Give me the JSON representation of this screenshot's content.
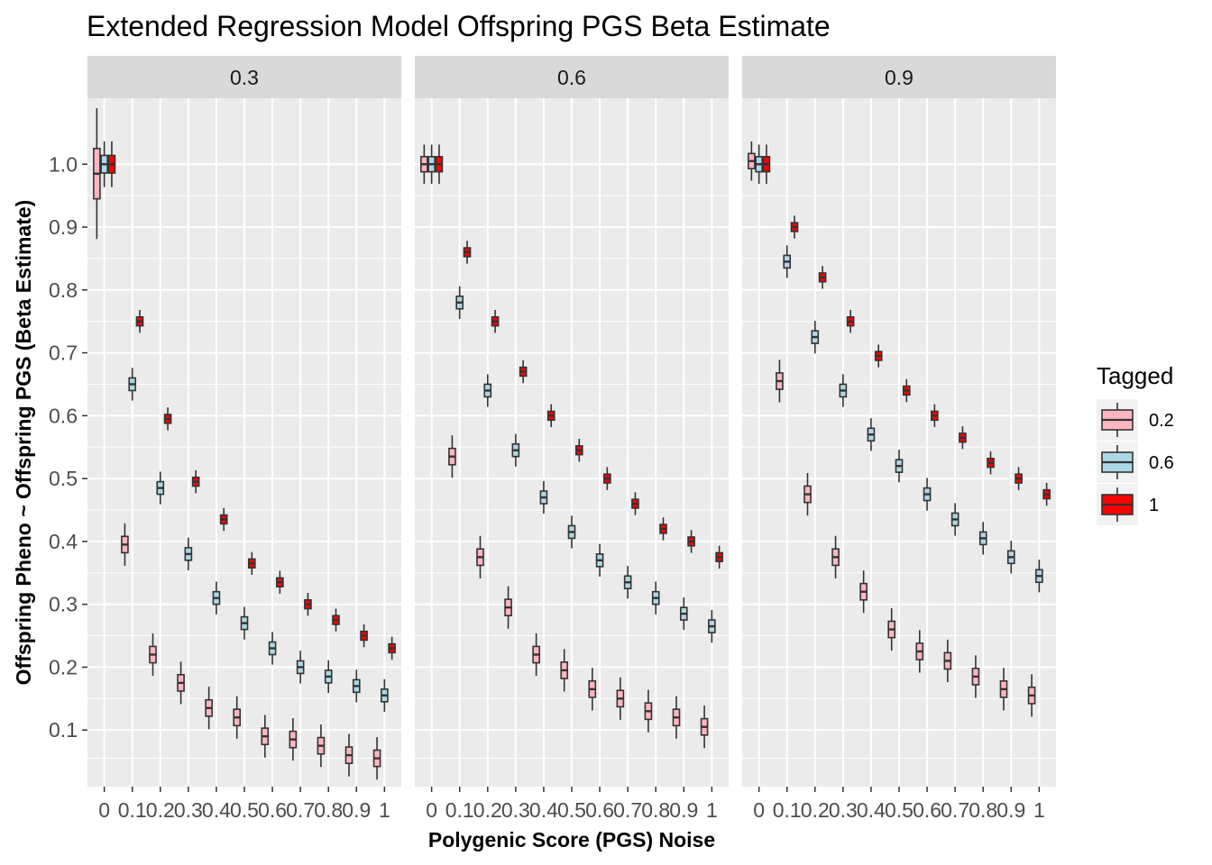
{
  "chart_data": {
    "type": "boxplot",
    "title": "Extended Regression Model Offspring PGS Beta Estimate",
    "xlabel": "Polygenic Score (PGS) Noise",
    "ylabel": "Offspring Pheno ~ Offspring PGS (Beta Estimate)",
    "x_categories": [
      "0",
      "0.1",
      "0.2",
      "0.3",
      "0.4",
      "0.5",
      "0.6",
      "0.7",
      "0.8",
      "0.9",
      "1"
    ],
    "y_ticks": [
      0.1,
      0.2,
      0.3,
      0.4,
      0.5,
      0.6,
      0.7,
      0.8,
      0.9,
      1.0
    ],
    "y_tick_labels": [
      "0.1",
      "0.2",
      "0.3",
      "0.4",
      "0.5",
      "0.6",
      "0.7",
      "0.8",
      "0.9",
      "1.0"
    ],
    "ylim": [
      0.01,
      1.105
    ],
    "grid": true,
    "legend": {
      "title": "Tagged",
      "position": "right",
      "entries": [
        {
          "label": "0.2",
          "color": "#FFB6C1"
        },
        {
          "label": "0.6",
          "color": "#ADD8E6"
        },
        {
          "label": "1",
          "color": "#FF0000"
        }
      ]
    },
    "facets": [
      {
        "label": "0.3",
        "series": [
          {
            "tagged": "0.2",
            "medians": [
              0.985,
              0.395,
              0.22,
              0.175,
              0.135,
              0.12,
              0.09,
              0.085,
              0.075,
              0.06,
              0.055
            ]
          },
          {
            "tagged": "0.6",
            "medians": [
              1.0,
              0.65,
              0.485,
              0.38,
              0.31,
              0.27,
              0.23,
              0.2,
              0.185,
              0.17,
              0.155
            ]
          },
          {
            "tagged": "1",
            "medians": [
              1.0,
              0.75,
              0.595,
              0.495,
              0.435,
              0.365,
              0.335,
              0.3,
              0.275,
              0.25,
              0.23
            ]
          }
        ]
      },
      {
        "label": "0.6",
        "series": [
          {
            "tagged": "0.2",
            "medians": [
              1.0,
              0.535,
              0.375,
              0.295,
              0.22,
              0.195,
              0.165,
              0.15,
              0.13,
              0.12,
              0.105
            ]
          },
          {
            "tagged": "0.6",
            "medians": [
              1.0,
              0.78,
              0.64,
              0.545,
              0.47,
              0.415,
              0.37,
              0.335,
              0.31,
              0.285,
              0.265
            ]
          },
          {
            "tagged": "1",
            "medians": [
              1.0,
              0.86,
              0.75,
              0.67,
              0.6,
              0.545,
              0.5,
              0.46,
              0.42,
              0.4,
              0.375
            ]
          }
        ]
      },
      {
        "label": "0.9",
        "series": [
          {
            "tagged": "0.2",
            "medians": [
              1.005,
              0.655,
              0.475,
              0.375,
              0.32,
              0.26,
              0.225,
              0.21,
              0.185,
              0.165,
              0.155
            ]
          },
          {
            "tagged": "0.6",
            "medians": [
              1.0,
              0.845,
              0.725,
              0.64,
              0.57,
              0.52,
              0.475,
              0.435,
              0.405,
              0.375,
              0.345
            ]
          },
          {
            "tagged": "1",
            "medians": [
              1.0,
              0.9,
              0.82,
              0.75,
              0.695,
              0.64,
              0.6,
              0.565,
              0.525,
              0.5,
              0.475
            ]
          }
        ]
      }
    ]
  }
}
